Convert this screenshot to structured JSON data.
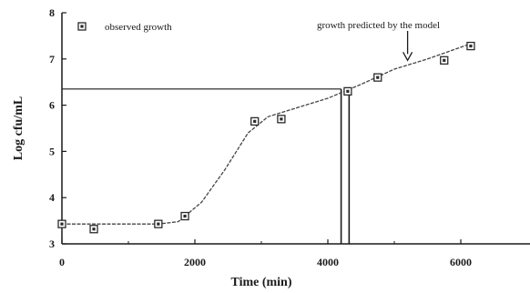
{
  "chart_data": {
    "type": "scatter",
    "xlabel": "Time (min)",
    "ylabel": "Log cfu/mL",
    "xlim": [
      0,
      7000
    ],
    "ylim": [
      3,
      8
    ],
    "x_ticks": [
      0,
      2000,
      4000,
      6000
    ],
    "y_ticks": [
      3,
      4,
      5,
      6,
      7,
      8
    ],
    "grid": false,
    "legend_position": "top-left",
    "series": [
      {
        "name": "observed growth",
        "marker": "square",
        "points": [
          {
            "x": 0,
            "y": 3.43
          },
          {
            "x": 480,
            "y": 3.32
          },
          {
            "x": 1450,
            "y": 3.43
          },
          {
            "x": 1850,
            "y": 3.6
          },
          {
            "x": 2900,
            "y": 5.65
          },
          {
            "x": 3300,
            "y": 5.7
          },
          {
            "x": 4300,
            "y": 6.3
          },
          {
            "x": 4750,
            "y": 6.6
          },
          {
            "x": 5750,
            "y": 6.97
          },
          {
            "x": 6150,
            "y": 7.28
          }
        ]
      },
      {
        "name": "growth predicted by the model",
        "style": "dashed-line",
        "points": [
          {
            "x": 0,
            "y": 3.43
          },
          {
            "x": 1450,
            "y": 3.43
          },
          {
            "x": 1750,
            "y": 3.48
          },
          {
            "x": 2100,
            "y": 3.9
          },
          {
            "x": 2450,
            "y": 4.6
          },
          {
            "x": 2800,
            "y": 5.4
          },
          {
            "x": 3100,
            "y": 5.75
          },
          {
            "x": 3500,
            "y": 5.93
          },
          {
            "x": 4000,
            "y": 6.15
          },
          {
            "x": 4500,
            "y": 6.45
          },
          {
            "x": 5000,
            "y": 6.78
          },
          {
            "x": 5500,
            "y": 7.0
          },
          {
            "x": 6150,
            "y": 7.33
          }
        ]
      }
    ],
    "reference_lines": {
      "horizontal_y": 6.35,
      "horizontal_x_end": 4200,
      "vertical_lines": [
        {
          "x": 4200,
          "y_top": 6.35
        },
        {
          "x": 4320,
          "y_top": 6.35
        }
      ]
    },
    "annotation": {
      "text": "growth predicted by the model",
      "arrow_to": {
        "x": 5200,
        "y": 6.95
      }
    },
    "colors": {
      "axis": "#1a1a1a",
      "marker": "#2a2a2a",
      "line": "#444444",
      "background": "#ffffff"
    }
  }
}
